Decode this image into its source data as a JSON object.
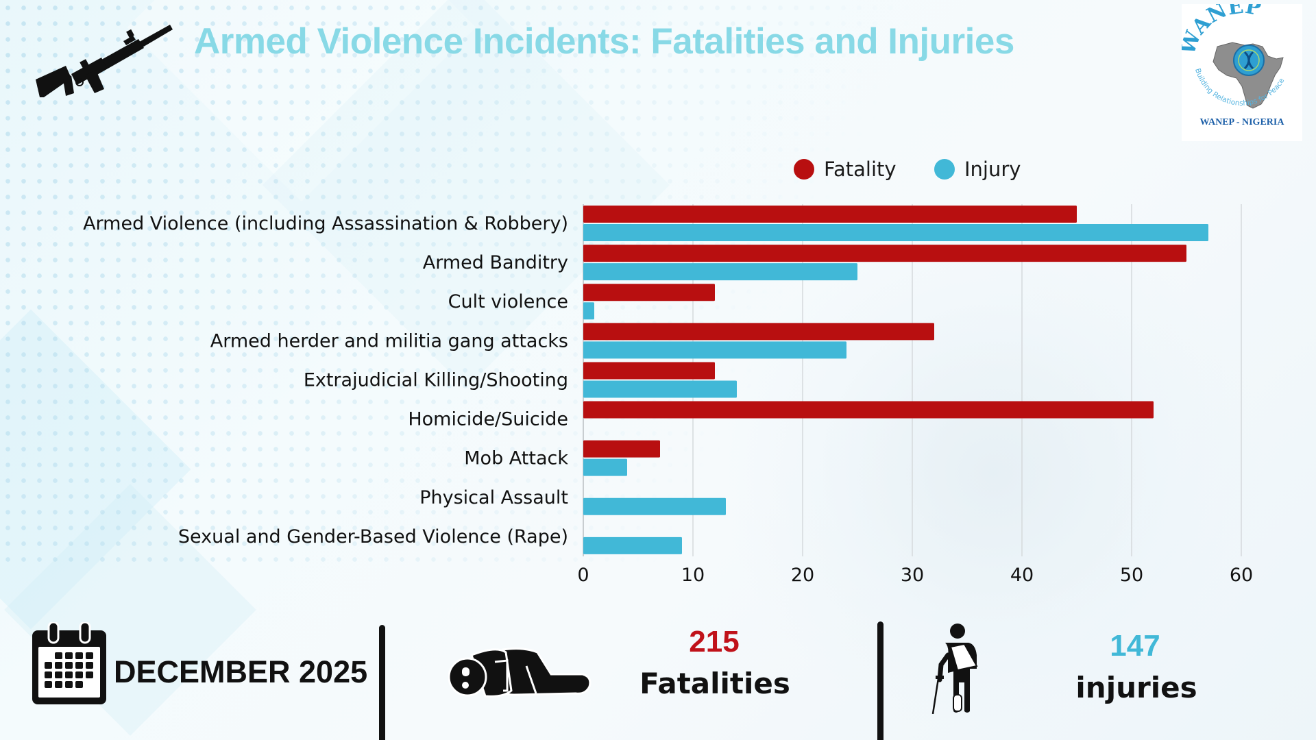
{
  "header": {
    "title": "Armed Violence Incidents: Fatalities and Injuries",
    "title_color": "#88D9E6",
    "weapon_icon": "assault-rifle-icon"
  },
  "logo": {
    "name": "WANEP",
    "tagline": "Building Relationships for Peace",
    "subtitle": "WANEP - NIGERIA"
  },
  "legend": [
    {
      "label": "Fatality",
      "color": "#B80F10"
    },
    {
      "label": "Injury",
      "color": "#41B8D7"
    }
  ],
  "chart_data": {
    "type": "bar",
    "orientation": "horizontal",
    "title": "Armed Violence Incidents: Fatalities and Injuries",
    "xlabel": "",
    "ylabel": "",
    "xlim": [
      0,
      60
    ],
    "x_ticks": [
      "0",
      "10",
      "20",
      "30",
      "40",
      "50",
      "60"
    ],
    "grid": "vertical",
    "legend_position": "top-right",
    "categories": [
      "Armed Violence (including Assassination & Robbery)",
      "Armed Banditry",
      "Cult violence",
      "Armed herder and militia gang attacks",
      "Extrajudicial Killing/Shooting",
      "Homicide/Suicide",
      "Mob Attack",
      "Physical Assault",
      "Sexual and Gender-Based Violence (Rape)"
    ],
    "series": [
      {
        "name": "Fatality",
        "color": "#B80F10",
        "values": [
          45,
          55,
          12,
          32,
          12,
          52,
          7,
          0,
          0
        ]
      },
      {
        "name": "Injury",
        "color": "#41B8D7",
        "values": [
          57,
          25,
          1,
          24,
          14,
          0,
          4,
          13,
          9
        ]
      }
    ]
  },
  "summary": {
    "period": "DECEMBER 2025",
    "period_icon": "calendar-icon",
    "fatalities": {
      "value": "215",
      "label": "Fatalities",
      "color": "#C0121A",
      "icon": "deceased-person-icon"
    },
    "injuries": {
      "value": "147",
      "label": "injuries",
      "color": "#41B8D7",
      "icon": "injured-person-icon"
    }
  }
}
